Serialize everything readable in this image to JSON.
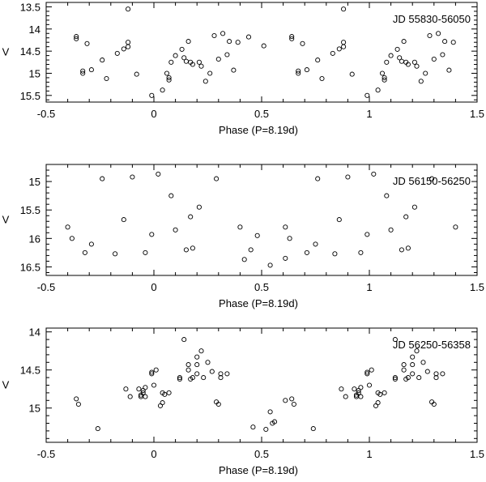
{
  "chart_data": [
    {
      "type": "scatter",
      "annotation": "JD 55830-56050",
      "xlabel": "Phase (P=8.19d)",
      "ylabel": "V",
      "xlim": [
        -0.5,
        1.5
      ],
      "ylim": [
        15.65,
        13.4
      ],
      "y_inverted": true,
      "xticks": [
        -0.5,
        0,
        0.5,
        1,
        1.5
      ],
      "xtick_labels": [
        "-0.5",
        "0",
        "0.5",
        "1",
        "1.5"
      ],
      "yticks": [
        13.5,
        14,
        14.5,
        15,
        15.5
      ],
      "ytick_labels": [
        "13.5",
        "14",
        "14.5",
        "15",
        "15.5"
      ],
      "marker": "open-circle",
      "series": [
        {
          "points": [
            [
              -0.36,
              14.17
            ],
            [
              -0.36,
              14.22
            ],
            [
              -0.33,
              14.95
            ],
            [
              -0.33,
              15.0
            ],
            [
              -0.31,
              14.33
            ],
            [
              -0.29,
              14.92
            ],
            [
              -0.24,
              14.7
            ],
            [
              -0.22,
              15.12
            ],
            [
              -0.17,
              14.55
            ],
            [
              -0.14,
              14.45
            ],
            [
              -0.12,
              14.3
            ],
            [
              -0.12,
              14.4
            ],
            [
              -0.12,
              13.55
            ],
            [
              -0.08,
              15.02
            ],
            [
              -0.01,
              15.5
            ],
            [
              0.04,
              15.38
            ],
            [
              0.06,
              15.0
            ],
            [
              0.07,
              15.1
            ],
            [
              0.07,
              15.15
            ],
            [
              0.08,
              14.75
            ],
            [
              0.1,
              14.6
            ],
            [
              0.13,
              14.46
            ],
            [
              0.14,
              14.65
            ],
            [
              0.15,
              14.73
            ],
            [
              0.16,
              14.28
            ],
            [
              0.17,
              14.75
            ],
            [
              0.18,
              14.8
            ],
            [
              0.21,
              14.75
            ],
            [
              0.22,
              14.84
            ],
            [
              0.24,
              15.18
            ],
            [
              0.26,
              15.0
            ],
            [
              0.28,
              14.15
            ],
            [
              0.3,
              14.68
            ],
            [
              0.32,
              14.1
            ],
            [
              0.34,
              14.58
            ],
            [
              0.35,
              14.28
            ],
            [
              0.37,
              14.93
            ],
            [
              0.39,
              14.3
            ],
            [
              0.44,
              14.18
            ],
            [
              0.51,
              14.38
            ],
            [
              0.64,
              14.17
            ],
            [
              0.64,
              14.22
            ],
            [
              0.67,
              14.95
            ],
            [
              0.67,
              15.0
            ],
            [
              0.69,
              14.33
            ],
            [
              0.71,
              14.92
            ],
            [
              0.76,
              14.7
            ],
            [
              0.78,
              15.12
            ],
            [
              0.83,
              14.55
            ],
            [
              0.86,
              14.45
            ],
            [
              0.88,
              14.3
            ],
            [
              0.88,
              14.4
            ],
            [
              0.88,
              13.55
            ],
            [
              0.92,
              15.02
            ],
            [
              0.99,
              15.5
            ],
            [
              1.04,
              15.38
            ],
            [
              1.06,
              15.0
            ],
            [
              1.07,
              15.1
            ],
            [
              1.07,
              15.15
            ],
            [
              1.08,
              14.75
            ],
            [
              1.1,
              14.6
            ],
            [
              1.13,
              14.46
            ],
            [
              1.14,
              14.65
            ],
            [
              1.15,
              14.73
            ],
            [
              1.16,
              14.28
            ],
            [
              1.17,
              14.75
            ],
            [
              1.18,
              14.8
            ],
            [
              1.21,
              14.75
            ],
            [
              1.22,
              14.84
            ],
            [
              1.24,
              15.18
            ],
            [
              1.26,
              15.0
            ],
            [
              1.28,
              14.15
            ],
            [
              1.3,
              14.68
            ],
            [
              1.32,
              14.1
            ],
            [
              1.34,
              14.58
            ],
            [
              1.35,
              14.28
            ],
            [
              1.37,
              14.93
            ],
            [
              1.39,
              14.3
            ]
          ]
        }
      ]
    },
    {
      "type": "scatter",
      "annotation": "JD 56150-56250",
      "xlabel": "Phase (P=8.19d)",
      "ylabel": "V",
      "xlim": [
        -0.5,
        1.5
      ],
      "ylim": [
        16.65,
        14.7
      ],
      "y_inverted": true,
      "xticks": [
        -0.5,
        0,
        0.5,
        1,
        1.5
      ],
      "xtick_labels": [
        "-0.5",
        "0",
        "0.5",
        "1",
        "1.5"
      ],
      "yticks": [
        15,
        15.5,
        16,
        16.5
      ],
      "ytick_labels": [
        "15",
        "15.5",
        "16",
        "16.5"
      ],
      "marker": "open-circle",
      "series": [
        {
          "points": [
            [
              -0.4,
              15.8
            ],
            [
              -0.38,
              16.0
            ],
            [
              -0.32,
              16.25
            ],
            [
              -0.29,
              16.1
            ],
            [
              -0.24,
              14.95
            ],
            [
              -0.18,
              16.27
            ],
            [
              -0.14,
              15.67
            ],
            [
              -0.1,
              14.92
            ],
            [
              -0.04,
              16.25
            ],
            [
              -0.01,
              15.93
            ],
            [
              0.02,
              14.87
            ],
            [
              0.08,
              15.25
            ],
            [
              0.1,
              15.85
            ],
            [
              0.15,
              16.2
            ],
            [
              0.17,
              15.62
            ],
            [
              0.18,
              16.17
            ],
            [
              0.21,
              15.45
            ],
            [
              0.29,
              14.95
            ],
            [
              0.4,
              15.8
            ],
            [
              0.42,
              16.37
            ],
            [
              0.45,
              16.2
            ],
            [
              0.48,
              15.95
            ],
            [
              0.54,
              16.47
            ],
            [
              0.61,
              16.35
            ],
            [
              0.61,
              15.8
            ],
            [
              0.63,
              16.0
            ],
            [
              0.71,
              16.25
            ],
            [
              0.75,
              16.1
            ],
            [
              0.76,
              14.95
            ],
            [
              0.84,
              16.27
            ],
            [
              0.86,
              15.67
            ],
            [
              0.9,
              14.92
            ],
            [
              0.96,
              16.25
            ],
            [
              0.99,
              15.93
            ],
            [
              1.02,
              14.87
            ],
            [
              1.08,
              15.25
            ],
            [
              1.1,
              15.85
            ],
            [
              1.15,
              16.2
            ],
            [
              1.17,
              15.62
            ],
            [
              1.18,
              16.17
            ],
            [
              1.21,
              15.45
            ],
            [
              1.29,
              14.95
            ],
            [
              1.4,
              15.8
            ]
          ]
        }
      ]
    },
    {
      "type": "scatter",
      "annotation": "JD 56250-56358",
      "xlabel": "Phase (P=8.19d)",
      "ylabel": "V",
      "xlim": [
        -0.5,
        1.5
      ],
      "ylim": [
        15.45,
        13.95
      ],
      "y_inverted": true,
      "xticks": [
        -0.5,
        0,
        0.5,
        1,
        1.5
      ],
      "xtick_labels": [
        "-0.5",
        "0",
        "0.5",
        "1",
        "1.5"
      ],
      "yticks": [
        14,
        14.5,
        15
      ],
      "ytick_labels": [
        "14",
        "14.5",
        "15"
      ],
      "marker": "open-circle",
      "series": [
        {
          "points": [
            [
              -0.36,
              14.88
            ],
            [
              -0.35,
              14.95
            ],
            [
              -0.26,
              15.27
            ],
            [
              -0.13,
              14.75
            ],
            [
              -0.11,
              14.85
            ],
            [
              -0.07,
              14.75
            ],
            [
              -0.06,
              14.85
            ],
            [
              -0.06,
              14.83
            ],
            [
              -0.05,
              14.8
            ],
            [
              -0.05,
              14.77
            ],
            [
              -0.04,
              14.85
            ],
            [
              -0.04,
              14.73
            ],
            [
              -0.01,
              14.55
            ],
            [
              -0.01,
              14.53
            ],
            [
              0.0,
              14.7
            ],
            [
              0.01,
              14.5
            ],
            [
              0.03,
              14.97
            ],
            [
              0.04,
              14.93
            ],
            [
              0.04,
              14.8
            ],
            [
              0.05,
              14.82
            ],
            [
              0.07,
              14.8
            ],
            [
              0.12,
              14.6
            ],
            [
              0.12,
              14.62
            ],
            [
              0.14,
              14.1
            ],
            [
              0.16,
              14.5
            ],
            [
              0.16,
              14.43
            ],
            [
              0.17,
              14.62
            ],
            [
              0.18,
              14.6
            ],
            [
              0.2,
              14.43
            ],
            [
              0.2,
              14.55
            ],
            [
              0.2,
              14.33
            ],
            [
              0.22,
              14.25
            ],
            [
              0.23,
              14.6
            ],
            [
              0.25,
              14.4
            ],
            [
              0.27,
              14.52
            ],
            [
              0.29,
              14.92
            ],
            [
              0.3,
              14.95
            ],
            [
              0.31,
              14.6
            ],
            [
              0.31,
              14.55
            ],
            [
              0.34,
              14.55
            ],
            [
              0.46,
              15.25
            ],
            [
              0.52,
              15.28
            ],
            [
              0.54,
              15.05
            ],
            [
              0.55,
              15.2
            ],
            [
              0.56,
              15.18
            ],
            [
              0.61,
              14.9
            ],
            [
              0.64,
              14.88
            ],
            [
              0.65,
              14.95
            ],
            [
              0.74,
              15.27
            ],
            [
              0.87,
              14.75
            ],
            [
              0.89,
              14.85
            ],
            [
              0.93,
              14.75
            ],
            [
              0.94,
              14.85
            ],
            [
              0.94,
              14.83
            ],
            [
              0.95,
              14.8
            ],
            [
              0.95,
              14.77
            ],
            [
              0.96,
              14.85
            ],
            [
              0.96,
              14.73
            ],
            [
              0.99,
              14.55
            ],
            [
              0.99,
              14.53
            ],
            [
              1.0,
              14.7
            ],
            [
              1.01,
              14.5
            ],
            [
              1.03,
              14.97
            ],
            [
              1.04,
              14.93
            ],
            [
              1.04,
              14.8
            ],
            [
              1.05,
              14.82
            ],
            [
              1.07,
              14.8
            ],
            [
              1.12,
              14.6
            ],
            [
              1.12,
              14.62
            ],
            [
              1.12,
              14.1
            ],
            [
              1.16,
              14.5
            ],
            [
              1.16,
              14.43
            ],
            [
              1.17,
              14.62
            ],
            [
              1.18,
              14.6
            ],
            [
              1.2,
              14.43
            ],
            [
              1.2,
              14.55
            ],
            [
              1.2,
              14.33
            ],
            [
              1.22,
              14.25
            ],
            [
              1.23,
              14.6
            ],
            [
              1.25,
              14.4
            ],
            [
              1.27,
              14.52
            ],
            [
              1.29,
              14.92
            ],
            [
              1.3,
              14.95
            ],
            [
              1.31,
              14.6
            ],
            [
              1.31,
              14.55
            ],
            [
              1.34,
              14.55
            ]
          ]
        }
      ]
    }
  ]
}
